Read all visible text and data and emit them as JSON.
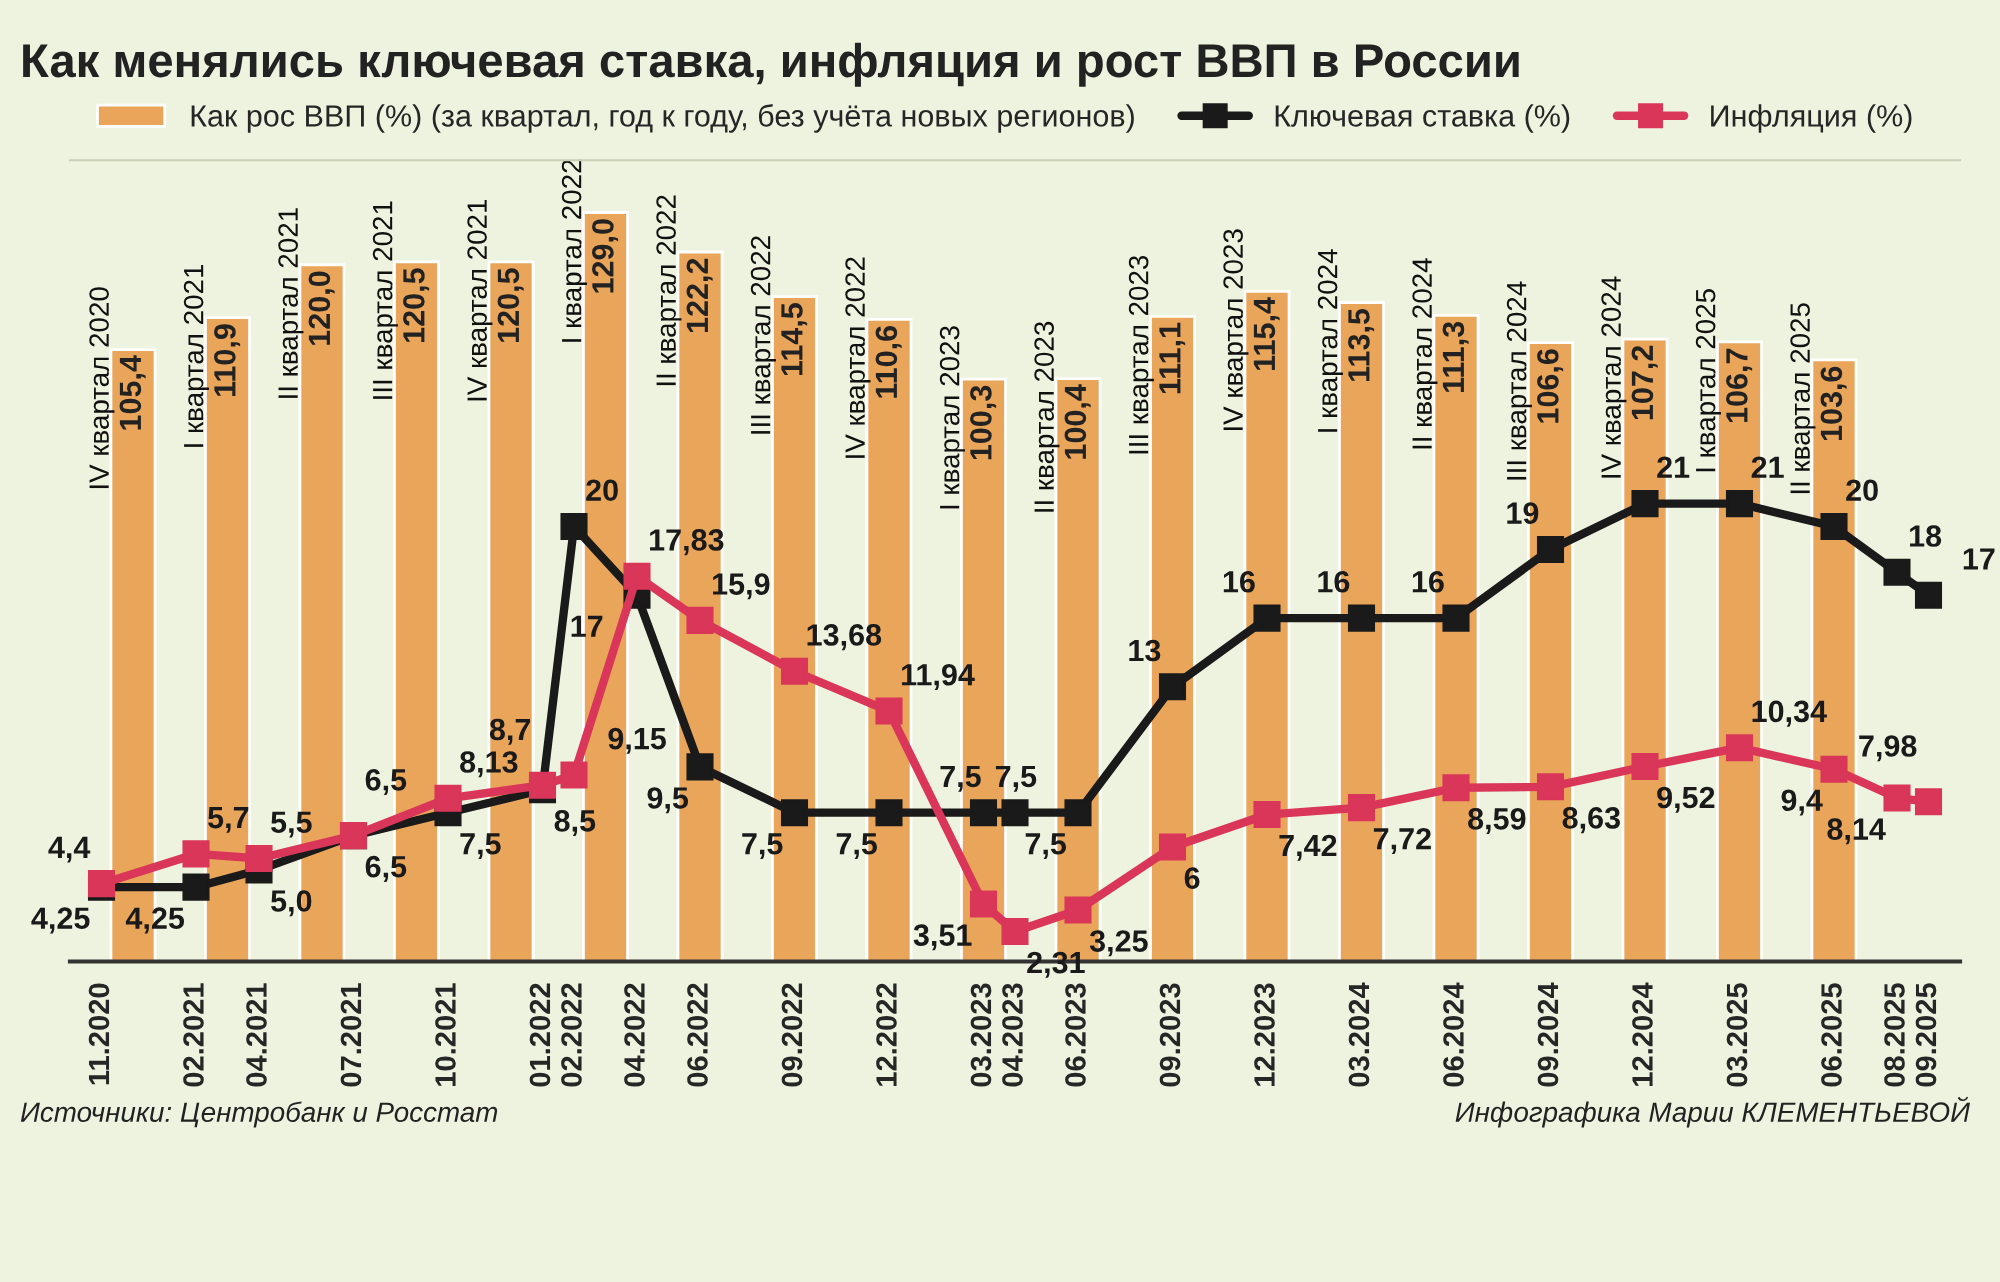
{
  "chart_data": {
    "type": "line",
    "title": "Как менялись ключевая ставка, инфляция и рост ВВП в России",
    "x": [
      "2020-11",
      "2021-02",
      "2021-04",
      "2021-07",
      "2021-10",
      "2022-01",
      "2022-02",
      "2022-04",
      "2022-06",
      "2022-09",
      "2022-12",
      "2023-03",
      "2023-04",
      "2023-06",
      "2023-09",
      "2023-12",
      "2024-03",
      "2024-06",
      "2024-09",
      "2024-12",
      "2025-03",
      "2025-06",
      "2025-08",
      "2025-09"
    ],
    "xlim": [
      "2020-10",
      "2025-10"
    ],
    "xticks": [
      {
        "value": "2020-11",
        "label": "11.2020"
      },
      {
        "value": "2021-02",
        "label": "02.2021"
      },
      {
        "value": "2021-04",
        "label": "04.2021"
      },
      {
        "value": "2021-07",
        "label": "07.2021"
      },
      {
        "value": "2021-10",
        "label": "10.2021"
      },
      {
        "value": "2022-01",
        "label": "01.2022"
      },
      {
        "value": "2022-02",
        "label": "02.2022"
      },
      {
        "value": "2022-04",
        "label": "04.2022"
      },
      {
        "value": "2022-06",
        "label": "06.2022"
      },
      {
        "value": "2022-09",
        "label": "09.2022"
      },
      {
        "value": "2022-12",
        "label": "12.2022"
      },
      {
        "value": "2023-03",
        "label": "03.2023"
      },
      {
        "value": "2023-04",
        "label": "04.2023"
      },
      {
        "value": "2023-06",
        "label": "06.2023"
      },
      {
        "value": "2023-09",
        "label": "09.2023"
      },
      {
        "value": "2023-12",
        "label": "12.2023"
      },
      {
        "value": "2024-03",
        "label": "03.2024"
      },
      {
        "value": "2024-06",
        "label": "06.2024"
      },
      {
        "value": "2024-09",
        "label": "09.2024"
      },
      {
        "value": "2024-12",
        "label": "12.2024"
      },
      {
        "value": "2025-03",
        "label": "03.2025"
      },
      {
        "value": "2025-06",
        "label": "06.2025"
      },
      {
        "value": "2025-08",
        "label": "08.2025"
      },
      {
        "value": "2025-09",
        "label": "09.2025"
      }
    ],
    "ylim": [
      1,
      36
    ],
    "y2lim": [
      0,
      138
    ],
    "tick_labels": "x",
    "marker": "square",
    "legend": "top left",
    "series": [
      {
        "type": "bar",
        "axis": "y2",
        "name": "Как рос ВВП (%) (за квартал, год к году, без учёта новых регионов)",
        "color": "#e9a55a",
        "x": [
          "2020-12",
          "2021-03",
          "2021-06",
          "2021-09",
          "2021-12",
          "2022-03",
          "2022-06",
          "2022-09",
          "2022-12",
          "2023-03",
          "2023-06",
          "2023-09",
          "2023-12",
          "2024-03",
          "2024-06",
          "2024-09",
          "2024-12",
          "2025-03",
          "2025-06"
        ],
        "values": [
          105.4,
          110.9,
          120.0,
          120.5,
          120.5,
          129.0,
          122.2,
          114.5,
          110.6,
          100.3,
          100.4,
          111.1,
          115.4,
          113.5,
          111.3,
          106.6,
          107.2,
          106.7,
          103.6
        ],
        "value_labels": [
          "105,4",
          "110,9",
          "120,0",
          "120,5",
          "120,5",
          "129,0",
          "122,2",
          "114,5",
          "110,6",
          "100,3",
          "100,4",
          "111,1",
          "115,4",
          "113,5",
          "111,3",
          "106,6",
          "107,2",
          "106,7",
          "103,6"
        ]
      },
      {
        "name": "Ключевая ставка (%)",
        "color": "#1a1a1a",
        "values": [
          4.25,
          4.25,
          5.0,
          6.5,
          7.5,
          8.5,
          20,
          17,
          9.5,
          7.5,
          7.5,
          7.5,
          7.5,
          7.5,
          13,
          16,
          16,
          16,
          19,
          21,
          21,
          20,
          18,
          17
        ],
        "value_labels": [
          "4,25",
          "4,25",
          "5,0",
          "6,5",
          "7,5",
          "8,5",
          "20",
          "17",
          "9,5",
          "7,5",
          "7,5",
          "7,5",
          "7,5",
          "7,5",
          "13",
          "16",
          "16",
          "16",
          "19",
          "21",
          "21",
          "20",
          "18",
          "17"
        ]
      },
      {
        "name": "Инфляция (%)",
        "color": "#d9365a",
        "values": [
          4.4,
          5.7,
          5.5,
          6.5,
          8.13,
          8.7,
          9.15,
          17.83,
          15.9,
          13.68,
          11.94,
          3.51,
          2.31,
          3.25,
          6,
          7.42,
          7.72,
          8.59,
          8.63,
          9.52,
          10.34,
          9.4,
          8.14,
          7.98
        ],
        "value_labels": [
          "4,4",
          "5,7",
          "5,5",
          "6,5",
          "8,13",
          "8,7",
          "9,15",
          "17,83",
          "15,9",
          "13,68",
          "11,94",
          "3,51",
          "2,31",
          "3,25",
          "6",
          "7,42",
          "7,72",
          "8,59",
          "8,63",
          "9,52",
          "10,34",
          "9,4",
          "8,14",
          "7,98"
        ]
      }
    ],
    "annotations": [
      "IV квартал 2020",
      "I квартал 2021",
      "II квартал 2021",
      "III квартал 2021",
      "IV квартал 2021",
      "I квартал 2022",
      "II квартал 2022",
      "III квартал 2022",
      "IV квартал 2022",
      "I квартал 2023",
      "II квартал 2023",
      "III квартал 2023",
      "IV квартал 2023",
      "I квартал 2024",
      "II квартал 2024",
      "III квартал 2024",
      "IV квартал 2024",
      "I квартал 2025",
      "II квартал 2025",
      "Источники: Центробанк и Росстат",
      "Инфографика Марии КЛЕМЕНТЬЕВОЙ"
    ]
  }
}
